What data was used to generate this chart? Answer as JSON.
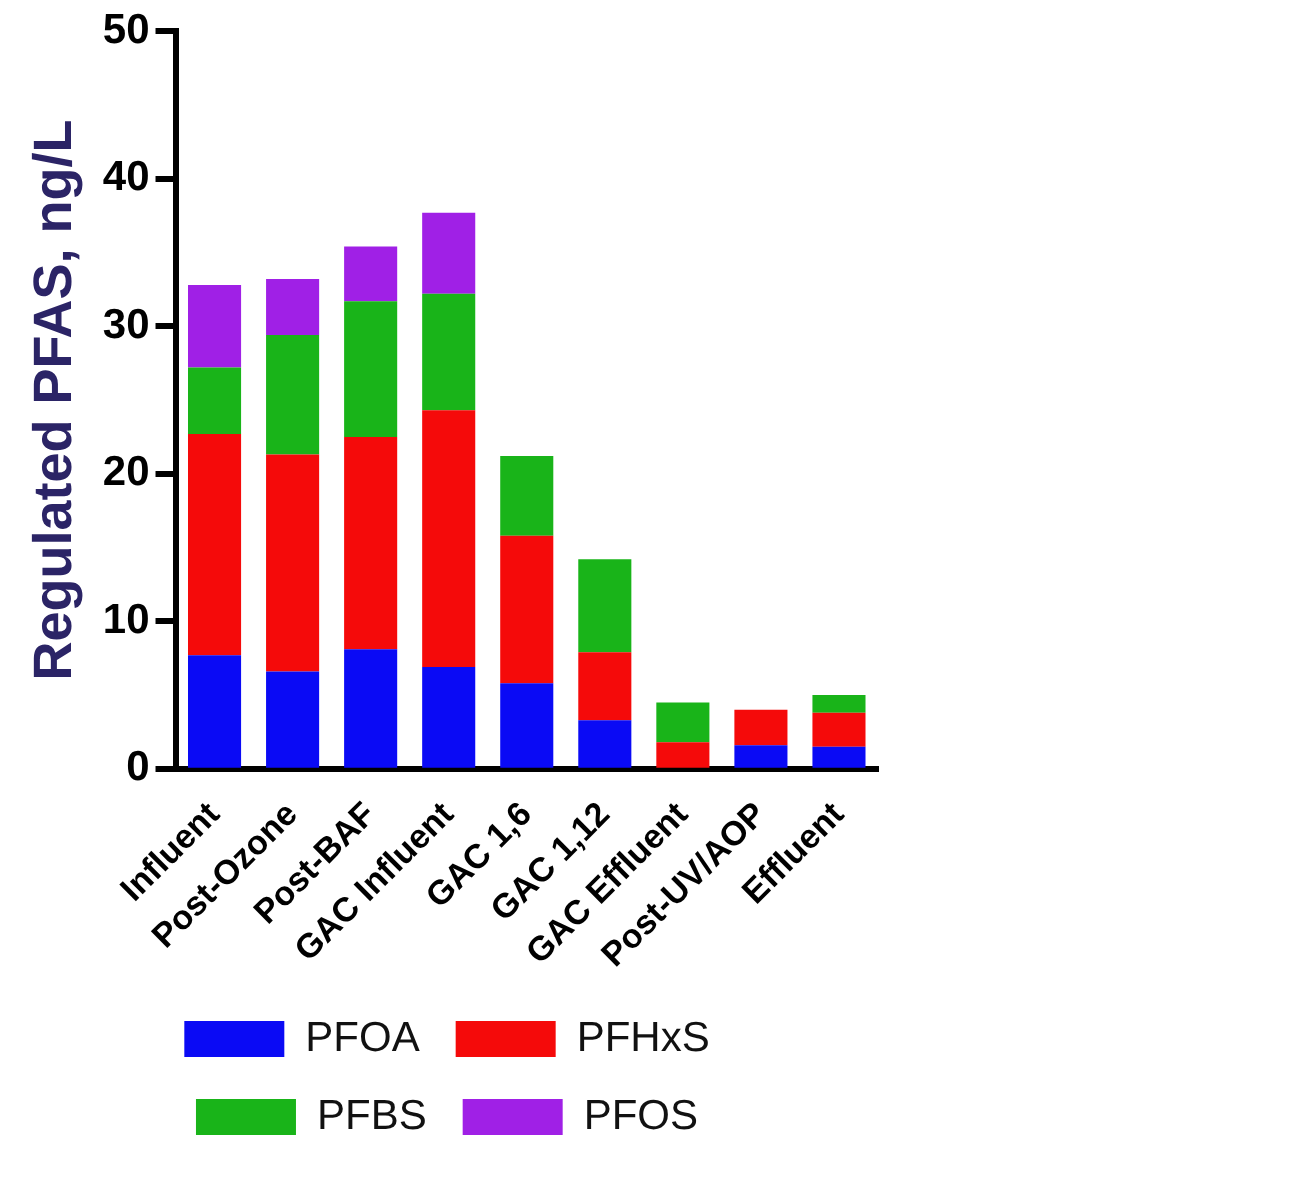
{
  "chart_data": {
    "type": "bar",
    "stacked": true,
    "ylabel": "Regulated PFAS, ng/L",
    "categories": [
      "Influent",
      "Post-Ozone",
      "Post-BAF",
      "GAC Influent",
      "GAC 1,6",
      "GAC 1,12",
      "GAC Effluent",
      "Post-UV/AOP",
      "Effluent"
    ],
    "series": [
      {
        "name": "PFOA",
        "color": "#0a0af5",
        "values": [
          7.7,
          6.6,
          8.1,
          6.9,
          5.8,
          3.3,
          0,
          1.6,
          1.5
        ]
      },
      {
        "name": "PFHxS",
        "color": "#f50a0a",
        "values": [
          15.0,
          14.7,
          14.4,
          17.4,
          10.0,
          4.6,
          1.8,
          2.4,
          2.3
        ]
      },
      {
        "name": "PFBS",
        "color": "#19b419",
        "values": [
          4.5,
          8.1,
          9.2,
          7.9,
          5.4,
          6.3,
          2.7,
          0,
          1.2
        ]
      },
      {
        "name": "PFOS",
        "color": "#a020e6",
        "values": [
          5.6,
          3.8,
          3.7,
          5.5,
          0,
          0,
          0,
          0,
          0
        ]
      }
    ],
    "ylim": [
      0,
      50
    ],
    "yticks": [
      0,
      10,
      20,
      30,
      40,
      50
    ],
    "grid": false,
    "legend": "bottom"
  }
}
